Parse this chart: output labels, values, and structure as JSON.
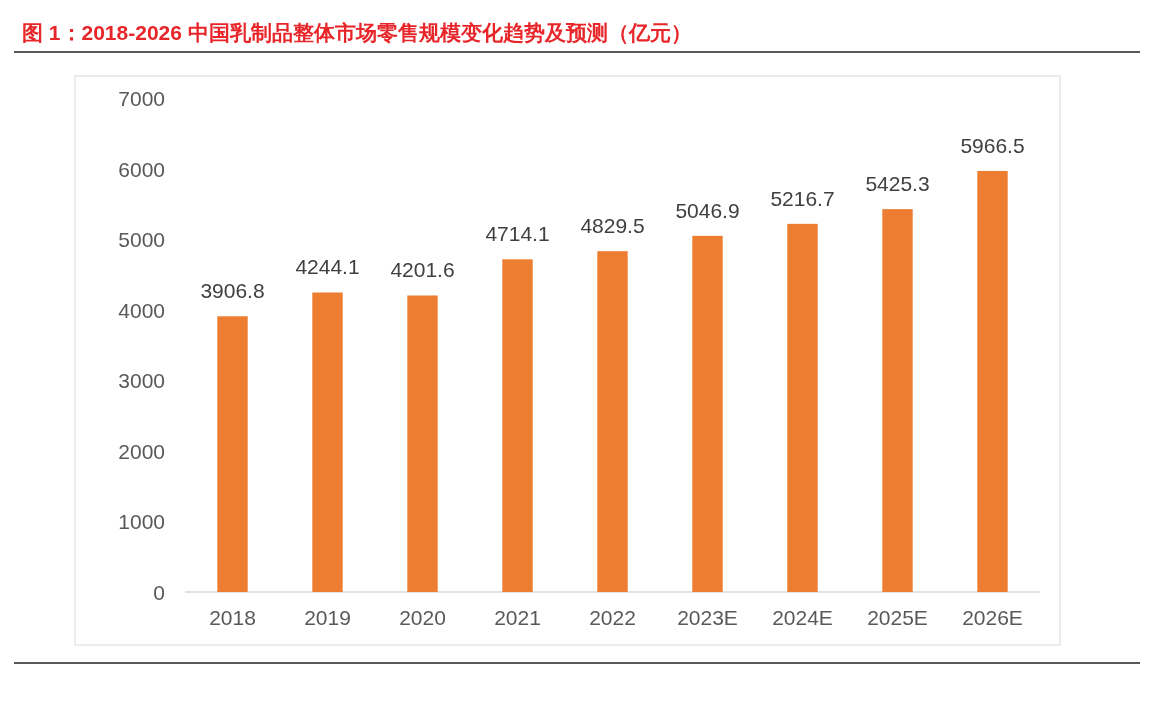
{
  "chart_data": {
    "type": "bar",
    "title": "图 1：2018-2026 中国乳制品整体市场零售规模变化趋势及预测（亿元）",
    "categories": [
      "2018",
      "2019",
      "2020",
      "2021",
      "2022",
      "2023E",
      "2024E",
      "2025E",
      "2026E"
    ],
    "values": [
      3906.8,
      4244.1,
      4201.6,
      4714.1,
      4829.5,
      5046.9,
      5216.7,
      5425.3,
      5966.5
    ],
    "color": "#ed7d31",
    "ylim": [
      0,
      7000
    ],
    "yticks": [
      0,
      1000,
      2000,
      3000,
      4000,
      5000,
      6000,
      7000
    ],
    "grid": false,
    "data_labels": true
  }
}
